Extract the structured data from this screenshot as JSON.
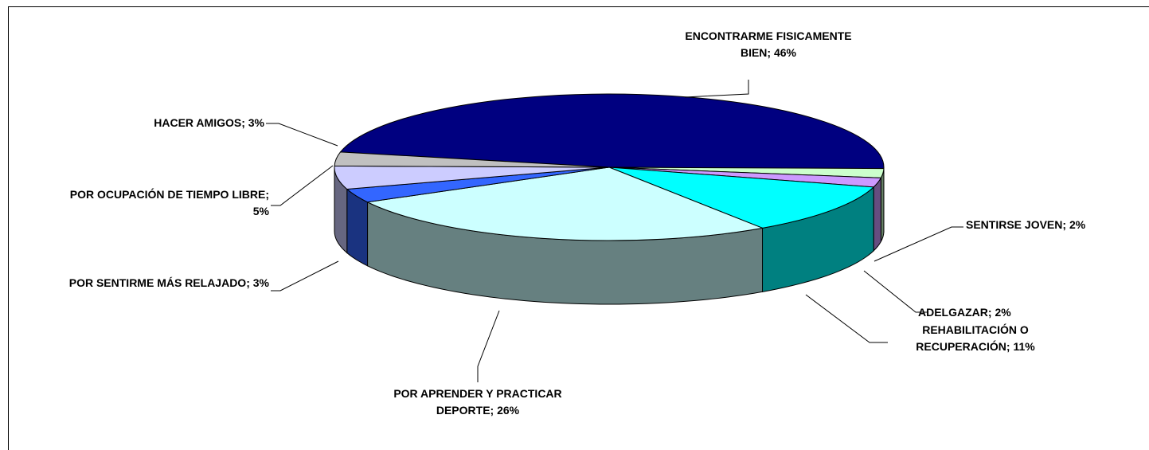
{
  "chart_data": {
    "type": "pie3d",
    "categories": [
      "ENCONTRARME FISICAMENTE BIEN",
      "SENTIRSE JOVEN",
      "ADELGAZAR",
      "REHABILITACIÓN O RECUPERACIÓN",
      "POR APRENDER Y PRACTICAR DEPORTE",
      "POR SENTIRME MÁS RELAJADO",
      "POR OCUPACIÓN DE TIEMPO LIBRE",
      "HACER AMIGOS"
    ],
    "values": [
      46,
      2,
      2,
      11,
      26,
      3,
      5,
      3
    ],
    "value_labels": [
      "46%",
      "2%",
      "2%",
      "11%",
      "26%",
      "3%",
      "5%",
      "3%"
    ],
    "label_separator": "; ",
    "colors": [
      "#000080",
      "#ccffcc",
      "#cc99ff",
      "#00ffff",
      "#ccffff",
      "#3366ff",
      "#ccccff",
      "#c0c0c0"
    ]
  }
}
